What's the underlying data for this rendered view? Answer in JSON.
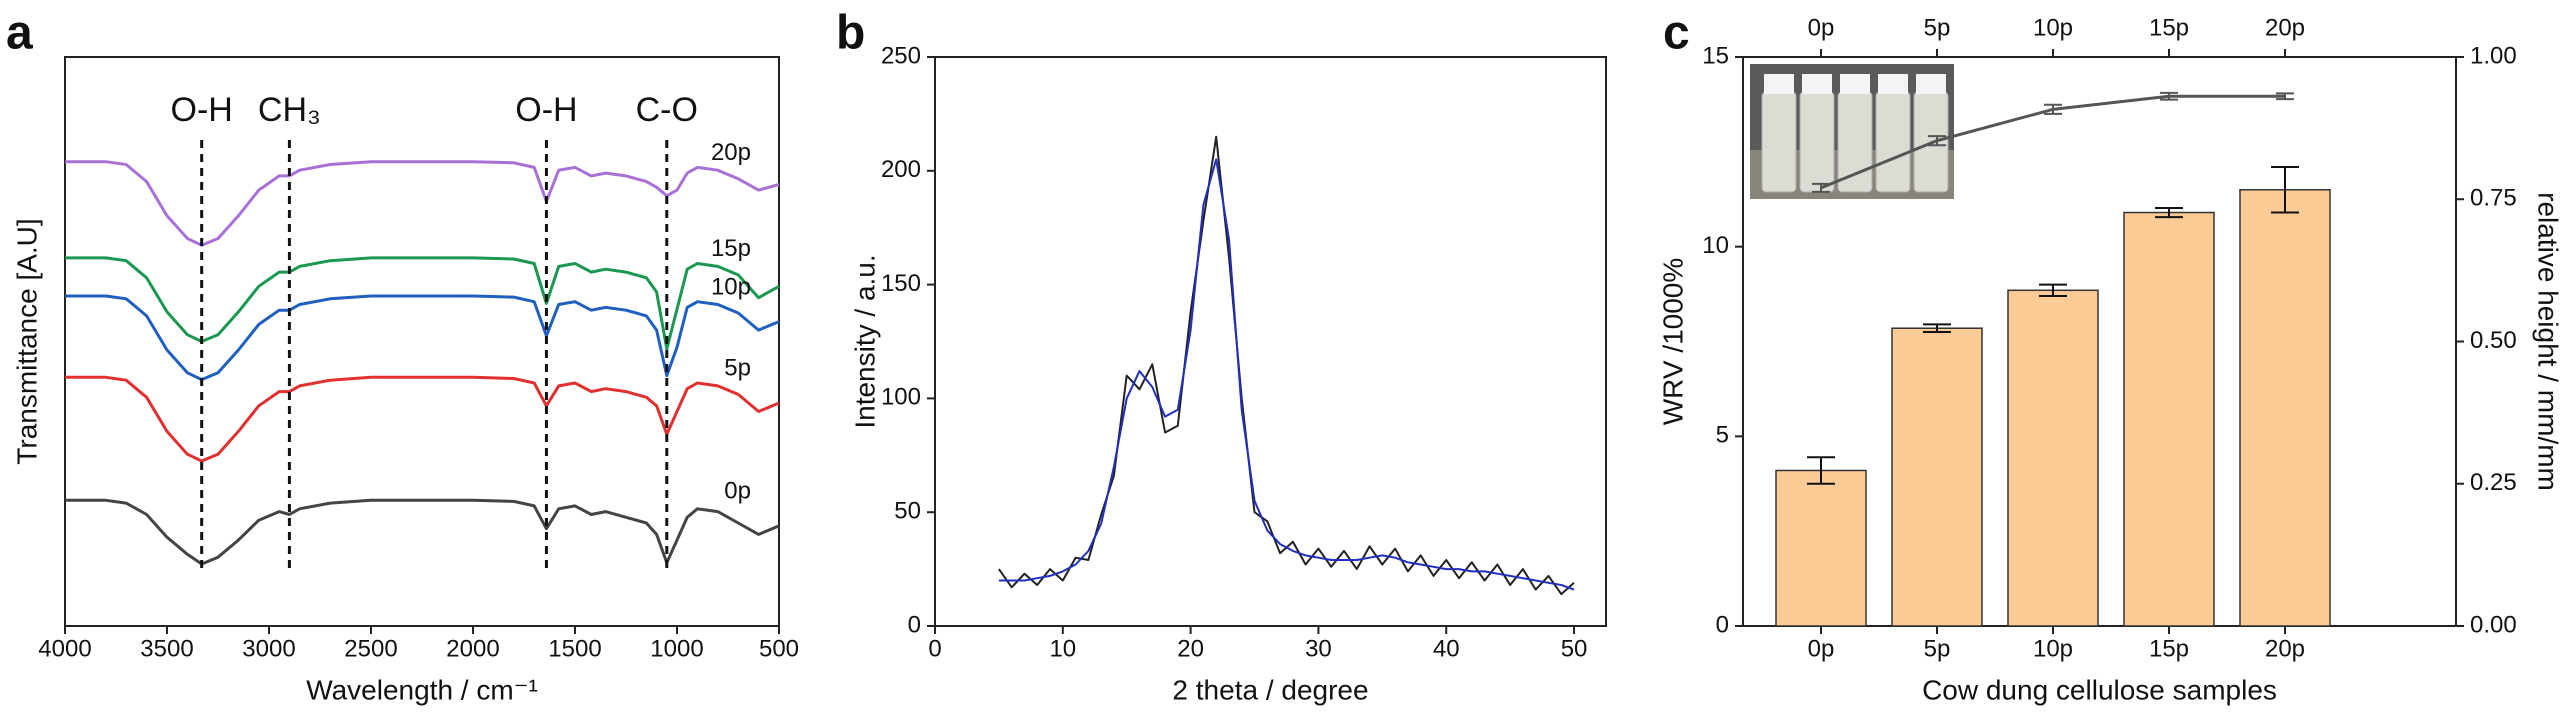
{
  "chart_data": [
    {
      "type": "line",
      "label": "a",
      "xlabel": "Wavelength / cm⁻¹",
      "ylabel": "Transmittance [A.U]",
      "xlim": [
        4000,
        500
      ],
      "xticks": [
        4000,
        3500,
        3000,
        2500,
        2000,
        1500,
        1000,
        500
      ],
      "ylim": [
        0,
        10
      ],
      "x": [
        4000,
        3800,
        3700,
        3600,
        3500,
        3400,
        3330,
        3250,
        3150,
        3050,
        2950,
        2900,
        2850,
        2700,
        2500,
        2000,
        1800,
        1700,
        1640,
        1580,
        1500,
        1420,
        1350,
        1250,
        1150,
        1100,
        1050,
        1000,
        950,
        900,
        800,
        700,
        600,
        500
      ],
      "annotations": [
        {
          "text": "O-H",
          "x": 3330
        },
        {
          "text": "CH₃",
          "x": 2900
        },
        {
          "text": "O-H",
          "x": 1640
        },
        {
          "text": "C-O",
          "x": 1050
        }
      ],
      "series": [
        {
          "name": "20p",
          "color": "#a970d6",
          "values": [
            8.16,
            8.16,
            8.11,
            7.81,
            7.21,
            6.81,
            6.69,
            6.81,
            7.21,
            7.66,
            7.91,
            7.91,
            8.01,
            8.11,
            8.16,
            8.16,
            8.14,
            8.06,
            7.46,
            8.01,
            8.06,
            7.91,
            7.96,
            7.91,
            7.81,
            7.71,
            7.56,
            7.66,
            7.96,
            8.06,
            8.01,
            7.86,
            7.66,
            7.76
          ]
        },
        {
          "name": "15p",
          "color": "#1a9850",
          "values": [
            6.47,
            6.47,
            6.42,
            6.12,
            5.52,
            5.12,
            5.0,
            5.12,
            5.52,
            5.97,
            6.22,
            6.22,
            6.32,
            6.42,
            6.47,
            6.47,
            6.45,
            6.37,
            5.67,
            6.32,
            6.37,
            6.22,
            6.27,
            6.22,
            6.12,
            5.87,
            4.87,
            5.57,
            6.27,
            6.37,
            6.32,
            6.17,
            5.77,
            5.97
          ]
        },
        {
          "name": "10p",
          "color": "#1f5fbf",
          "values": [
            5.8,
            5.8,
            5.75,
            5.45,
            4.85,
            4.45,
            4.33,
            4.45,
            4.85,
            5.3,
            5.55,
            5.55,
            5.65,
            5.75,
            5.8,
            5.8,
            5.78,
            5.7,
            5.1,
            5.65,
            5.7,
            5.55,
            5.6,
            5.55,
            5.45,
            5.2,
            4.4,
            4.9,
            5.6,
            5.7,
            5.65,
            5.5,
            5.2,
            5.35
          ]
        },
        {
          "name": "5p",
          "color": "#e03030",
          "values": [
            4.37,
            4.37,
            4.32,
            4.02,
            3.42,
            3.02,
            2.9,
            3.02,
            3.42,
            3.87,
            4.12,
            4.12,
            4.22,
            4.32,
            4.37,
            4.37,
            4.35,
            4.27,
            3.87,
            4.22,
            4.27,
            4.12,
            4.17,
            4.12,
            4.02,
            3.87,
            3.37,
            3.77,
            4.17,
            4.27,
            4.22,
            4.07,
            3.77,
            3.92
          ]
        },
        {
          "name": "0p",
          "color": "#444444",
          "values": [
            2.21,
            2.21,
            2.16,
            1.96,
            1.56,
            1.26,
            1.09,
            1.21,
            1.51,
            1.86,
            2.01,
            1.96,
            2.06,
            2.16,
            2.21,
            2.21,
            2.19,
            2.11,
            1.71,
            2.06,
            2.11,
            1.96,
            2.01,
            1.91,
            1.81,
            1.61,
            1.11,
            1.51,
            1.91,
            2.06,
            2.01,
            1.81,
            1.61,
            1.76
          ]
        }
      ]
    },
    {
      "type": "line",
      "label": "b",
      "xlabel": "2 theta / degree",
      "ylabel": "Intensity / a.u.",
      "xlim": [
        0,
        52.5
      ],
      "xticks": [
        0,
        10,
        20,
        30,
        40,
        50
      ],
      "ylim": [
        0,
        250
      ],
      "yticks": [
        0,
        50,
        100,
        150,
        200,
        250
      ],
      "x": [
        5,
        6,
        7,
        8,
        9,
        10,
        11,
        12,
        13,
        14,
        15,
        16,
        17,
        18,
        19,
        20,
        21,
        22,
        23,
        24,
        25,
        26,
        27,
        28,
        29,
        30,
        31,
        32,
        33,
        34,
        35,
        36,
        37,
        38,
        39,
        40,
        41,
        42,
        43,
        44,
        45,
        46,
        47,
        48,
        49,
        50
      ],
      "series": [
        {
          "color": "#222222",
          "values": [
            25,
            17,
            23,
            18,
            25,
            20,
            30,
            29,
            49,
            66,
            110,
            104,
            115,
            85,
            88,
            138,
            178,
            215,
            162,
            100,
            50,
            46,
            32,
            37,
            27,
            34,
            26,
            33,
            25,
            35,
            27,
            34,
            24,
            31,
            22,
            29,
            21,
            28,
            20,
            27,
            18,
            25,
            16,
            22,
            14,
            19
          ]
        },
        {
          "color": "#1f2fbf",
          "values": [
            20,
            20,
            20,
            21,
            22,
            24,
            27,
            33,
            45,
            70,
            100,
            112,
            105,
            92,
            95,
            130,
            185,
            205,
            170,
            95,
            55,
            42,
            36,
            33,
            31,
            30,
            29,
            29,
            29,
            30,
            31,
            30,
            28,
            27,
            26,
            25,
            25,
            24,
            24,
            23,
            22,
            21,
            20,
            19,
            18,
            16
          ]
        }
      ]
    },
    {
      "type": "bar",
      "label": "c",
      "xlabel": "Cow dung cellulose samples",
      "ylabel": "WRV /1000%",
      "y2label": "relative height / mm/mm",
      "categories": [
        "0p",
        "5p",
        "10p",
        "15p",
        "20p"
      ],
      "ylim": [
        0,
        15
      ],
      "yticks": [
        0,
        5,
        10,
        15
      ],
      "y2lim": [
        0,
        1
      ],
      "y2ticks": [
        {
          "value": 0,
          "label": "0.00"
        },
        {
          "value": 0.25,
          "label": "0.25"
        },
        {
          "value": 0.5,
          "label": "0.50"
        },
        {
          "value": 0.75,
          "label": "0.75"
        },
        {
          "value": 1,
          "label": "1.00"
        }
      ],
      "series": [
        {
          "color": "#fdcb95",
          "values": [
            4.1,
            7.85,
            8.85,
            10.9,
            11.5
          ],
          "errors": [
            0.35,
            0.1,
            0.15,
            0.12,
            0.6
          ]
        },
        {
          "color": "#555555",
          "axis": "y2",
          "values": [
            0.77,
            0.853,
            0.908,
            0.931,
            0.931
          ],
          "errors": [
            0.007,
            0.008,
            0.008,
            0.006,
            0.005
          ]
        }
      ]
    }
  ]
}
